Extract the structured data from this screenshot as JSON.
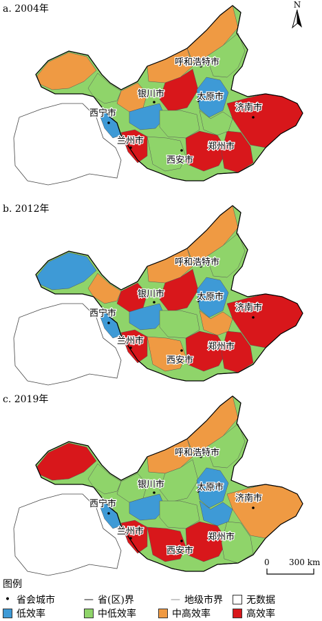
{
  "panels": [
    {
      "label": "a. 2004年",
      "scheme": "a"
    },
    {
      "label": "b. 2012年",
      "scheme": "b"
    },
    {
      "label": "c. 2019年",
      "scheme": "c"
    }
  ],
  "cities": [
    "呼和浩特市",
    "银川市",
    "太原市",
    "济南市",
    "西宁市",
    "兰州市",
    "西安市",
    "郑州市"
  ],
  "north_label": "N",
  "scale": {
    "zero": "0",
    "distance": "300 km"
  },
  "legend": {
    "title": "图例",
    "capital": "省会城市",
    "province_border": "省(区)界",
    "city_border": "地级市界",
    "no_data": "无数据",
    "low": "低效率",
    "mid_low": "中低效率",
    "mid_high": "中高效率",
    "high": "高效率"
  },
  "colors": {
    "low": "#3e9ad6",
    "mid_low": "#8fd46a",
    "mid_high": "#ef9a43",
    "high": "#d8171b",
    "no_data": "#ffffff"
  }
}
